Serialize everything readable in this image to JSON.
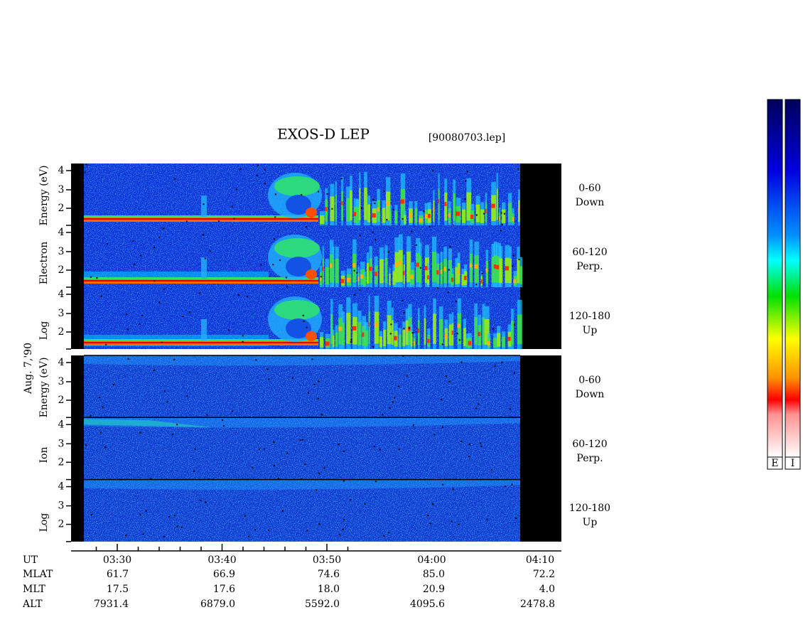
{
  "header": {
    "title": "EXOS-D LEP",
    "file": "[90080703.lep]"
  },
  "left_labels": {
    "date": "Aug. 7,'90",
    "electron": [
      "Log",
      "Electron",
      "Energy (eV)"
    ],
    "ion": [
      "Log",
      "Ion",
      "Energy (eV)"
    ]
  },
  "y_ticks": [
    "4",
    "3",
    "2"
  ],
  "panels": [
    {
      "angle": "0-60",
      "direction": "Down"
    },
    {
      "angle": "60-120",
      "direction": "Perp."
    },
    {
      "angle": "120-180",
      "direction": "Up"
    }
  ],
  "x_axis": {
    "ticks": [
      "03:30",
      "03:40",
      "03:50",
      "04:00",
      "04:10"
    ]
  },
  "ephemeris": {
    "rows": [
      {
        "label": "MLAT",
        "values": [
          "61.7",
          "66.9",
          "74.6",
          "85.0",
          "72.2"
        ]
      },
      {
        "label": "MLT",
        "values": [
          "17.5",
          "17.6",
          "18.0",
          "20.9",
          "4.0"
        ]
      },
      {
        "label": "ALT",
        "values": [
          "7931.4",
          "6879.0",
          "5592.0",
          "4095.6",
          "2478.8"
        ]
      }
    ],
    "ut_label": "UT"
  },
  "colorbars": [
    "E",
    "I"
  ]
}
